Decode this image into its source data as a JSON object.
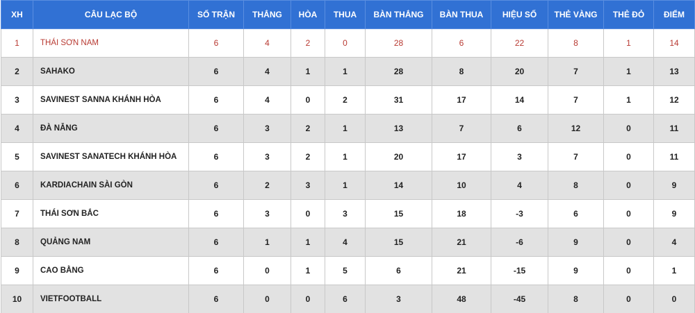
{
  "table": {
    "header": [
      "XH",
      "CÂU LẠC BỘ",
      "SỐ TRẬN",
      "THẮNG",
      "HÒA",
      "THUA",
      "BÀN THẮNG",
      "BÀN THUA",
      "HIỆU SỐ",
      "THẺ VÀNG",
      "THẺ ĐỎ",
      "ĐIỂM"
    ],
    "rows": [
      [
        "1",
        "THÁI SƠN NAM",
        "6",
        "4",
        "2",
        "0",
        "28",
        "6",
        "22",
        "8",
        "1",
        "14"
      ],
      [
        "2",
        "SAHAKO",
        "6",
        "4",
        "1",
        "1",
        "28",
        "8",
        "20",
        "7",
        "1",
        "13"
      ],
      [
        "3",
        "SAVINEST SANNA KHÁNH HÒA",
        "6",
        "4",
        "0",
        "2",
        "31",
        "17",
        "14",
        "7",
        "1",
        "12"
      ],
      [
        "4",
        "ĐÀ NẴNG",
        "6",
        "3",
        "2",
        "1",
        "13",
        "7",
        "6",
        "12",
        "0",
        "11"
      ],
      [
        "5",
        "SAVINEST SANATECH KHÁNH HÒA",
        "6",
        "3",
        "2",
        "1",
        "20",
        "17",
        "3",
        "7",
        "0",
        "11"
      ],
      [
        "6",
        "KARDIACHAIN SÀI GÒN",
        "6",
        "2",
        "3",
        "1",
        "14",
        "10",
        "4",
        "8",
        "0",
        "9"
      ],
      [
        "7",
        "THÁI SƠN BẮC",
        "6",
        "3",
        "0",
        "3",
        "15",
        "18",
        "-3",
        "6",
        "0",
        "9"
      ],
      [
        "8",
        "QUẢNG NAM",
        "6",
        "1",
        "1",
        "4",
        "15",
        "21",
        "-6",
        "9",
        "0",
        "4"
      ],
      [
        "9",
        "CAO BẰNG",
        "6",
        "0",
        "1",
        "5",
        "6",
        "21",
        "-15",
        "9",
        "0",
        "1"
      ],
      [
        "10",
        "VIETFOOTBALL",
        "6",
        "0",
        "0",
        "6",
        "3",
        "48",
        "-45",
        "8",
        "0",
        "0"
      ]
    ]
  }
}
